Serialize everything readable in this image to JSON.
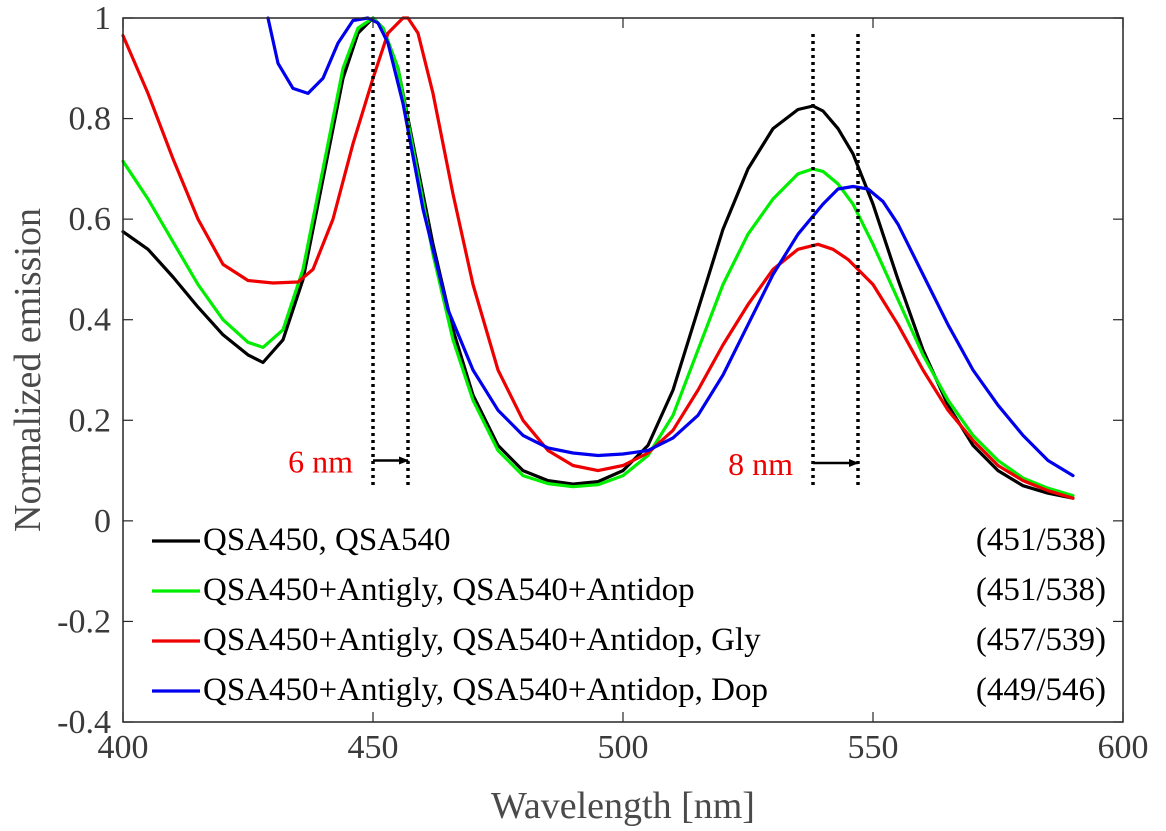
{
  "chart_data": {
    "type": "line",
    "title": "",
    "xlabel": "Wavelength [nm]",
    "ylabel": "Normalized emission",
    "xlim": [
      400,
      600
    ],
    "ylim": [
      -0.4,
      1
    ],
    "xticks": [
      400,
      450,
      500,
      550,
      600
    ],
    "xtick_labels": [
      "400",
      "450",
      "500",
      "550",
      "600"
    ],
    "yticks": [
      -0.4,
      -0.2,
      0,
      0.2,
      0.4,
      0.6,
      0.8,
      1
    ],
    "ytick_labels": [
      "-0.4",
      "-0.2",
      "0",
      "0.2",
      "0.4",
      "0.6",
      "0.8",
      "1"
    ],
    "grid": false,
    "legend_position": "bottom",
    "series": [
      {
        "name": "QSA450, QSA540",
        "peaks": "(451/538)",
        "color": "#000000",
        "x": [
          400,
          405,
          410,
          415,
          420,
          425,
          428,
          432,
          436,
          440,
          444,
          447,
          450,
          452,
          455,
          458,
          462,
          466,
          470,
          475,
          480,
          485,
          490,
          495,
          500,
          505,
          510,
          515,
          520,
          525,
          530,
          535,
          538,
          540,
          543,
          546,
          550,
          555,
          560,
          565,
          570,
          575,
          580,
          585,
          590
        ],
        "y": [
          0.575,
          0.54,
          0.485,
          0.425,
          0.37,
          0.33,
          0.315,
          0.36,
          0.48,
          0.68,
          0.88,
          0.97,
          1.0,
          0.98,
          0.9,
          0.75,
          0.55,
          0.38,
          0.25,
          0.15,
          0.1,
          0.08,
          0.073,
          0.078,
          0.1,
          0.15,
          0.26,
          0.42,
          0.58,
          0.7,
          0.78,
          0.818,
          0.825,
          0.815,
          0.78,
          0.73,
          0.63,
          0.48,
          0.34,
          0.23,
          0.15,
          0.1,
          0.07,
          0.055,
          0.045
        ]
      },
      {
        "name": "QSA450+Antigly, QSA540+Antidop",
        "peaks": "(451/538)",
        "color": "#00ee00",
        "x": [
          400,
          405,
          410,
          415,
          420,
          425,
          428,
          432,
          436,
          440,
          444,
          447,
          450,
          452,
          455,
          458,
          462,
          466,
          470,
          475,
          480,
          485,
          490,
          495,
          500,
          505,
          510,
          515,
          520,
          525,
          530,
          535,
          538,
          540,
          543,
          546,
          550,
          555,
          560,
          565,
          570,
          575,
          580,
          585,
          590
        ],
        "y": [
          0.715,
          0.64,
          0.555,
          0.47,
          0.4,
          0.355,
          0.345,
          0.38,
          0.5,
          0.7,
          0.9,
          0.98,
          1.0,
          0.98,
          0.9,
          0.74,
          0.53,
          0.36,
          0.24,
          0.14,
          0.09,
          0.074,
          0.068,
          0.072,
          0.09,
          0.13,
          0.21,
          0.34,
          0.47,
          0.57,
          0.64,
          0.69,
          0.7,
          0.695,
          0.67,
          0.63,
          0.55,
          0.44,
          0.33,
          0.24,
          0.17,
          0.12,
          0.085,
          0.065,
          0.05
        ]
      },
      {
        "name": "QSA450+Antigly, QSA540+Antidop, Gly",
        "peaks": "(457/539)",
        "color": "#ee0000",
        "x": [
          400,
          405,
          410,
          415,
          420,
          425,
          430,
          435,
          438,
          442,
          446,
          450,
          453,
          456,
          457,
          459,
          462,
          466,
          470,
          475,
          480,
          485,
          490,
          495,
          500,
          505,
          510,
          515,
          520,
          525,
          530,
          535,
          539,
          542,
          545,
          550,
          555,
          560,
          565,
          570,
          575,
          580,
          585,
          590
        ],
        "y": [
          0.965,
          0.85,
          0.72,
          0.6,
          0.51,
          0.478,
          0.473,
          0.475,
          0.5,
          0.6,
          0.75,
          0.88,
          0.97,
          1.0,
          1.0,
          0.97,
          0.85,
          0.65,
          0.47,
          0.3,
          0.2,
          0.14,
          0.11,
          0.1,
          0.11,
          0.135,
          0.18,
          0.26,
          0.35,
          0.43,
          0.5,
          0.54,
          0.55,
          0.54,
          0.52,
          0.47,
          0.39,
          0.3,
          0.22,
          0.16,
          0.11,
          0.08,
          0.06,
          0.045
        ]
      },
      {
        "name": "QSA450+Antigly, QSA540+Antidop, Dop",
        "peaks": "(449/546)",
        "color": "#0000ee",
        "x": [
          429,
          431,
          434,
          437,
          440,
          443,
          446,
          449,
          451,
          453,
          456,
          460,
          465,
          470,
          475,
          480,
          485,
          490,
          495,
          500,
          505,
          510,
          515,
          520,
          525,
          530,
          535,
          540,
          543,
          546,
          549,
          552,
          555,
          560,
          565,
          570,
          575,
          580,
          585,
          590
        ],
        "y": [
          1.0,
          0.91,
          0.86,
          0.85,
          0.88,
          0.95,
          0.995,
          1.0,
          0.99,
          0.95,
          0.83,
          0.62,
          0.42,
          0.3,
          0.22,
          0.17,
          0.145,
          0.135,
          0.13,
          0.133,
          0.14,
          0.165,
          0.21,
          0.29,
          0.39,
          0.49,
          0.57,
          0.63,
          0.66,
          0.665,
          0.66,
          0.635,
          0.59,
          0.49,
          0.39,
          0.3,
          0.23,
          0.17,
          0.12,
          0.09
        ]
      }
    ],
    "annotations": [
      {
        "text": "6 nm",
        "color": "#ee0000",
        "lines_x": [
          450,
          457
        ],
        "arrow_y": 0.12,
        "arrow_from": 450,
        "arrow_to": 457
      },
      {
        "text": "8 nm",
        "color": "#ee0000",
        "lines_x": [
          538,
          547
        ],
        "arrow_y": 0.115,
        "arrow_from": 538,
        "arrow_to": 547
      }
    ]
  }
}
